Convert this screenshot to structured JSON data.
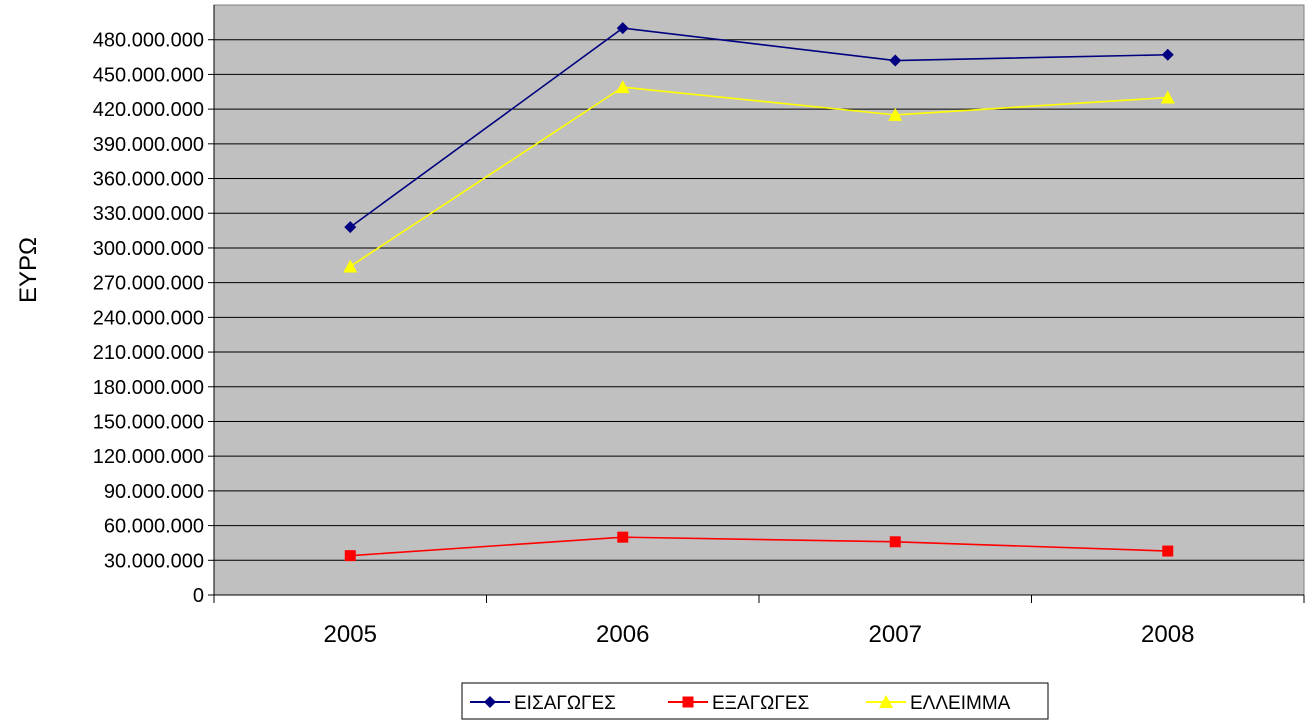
{
  "chart_data": {
    "type": "line",
    "ylabel": "ΕΥΡΩ",
    "categories": [
      "2005",
      "2006",
      "2007",
      "2008"
    ],
    "ylim": [
      0,
      510000000
    ],
    "ytick_step": 30000000,
    "ytick_labels": [
      "0",
      "30.000.000",
      "60.000.000",
      "90.000.000",
      "120.000.000",
      "150.000.000",
      "180.000.000",
      "210.000.000",
      "240.000.000",
      "270.000.000",
      "300.000.000",
      "330.000.000",
      "360.000.000",
      "390.000.000",
      "420.000.000",
      "450.000.000",
      "480.000.000"
    ],
    "grid": true,
    "legend_position": "bottom",
    "plot_background": "#c0c0c0",
    "series": [
      {
        "name": "ΕΙΣΑΓΩΓΕΣ",
        "color": "#000080",
        "marker": "diamond",
        "values": [
          318000000,
          490000000,
          462000000,
          467000000
        ]
      },
      {
        "name": "ΕΞΑΓΩΓΕΣ",
        "color": "#ff0000",
        "marker": "square",
        "values": [
          34000000,
          50000000,
          46000000,
          38000000
        ]
      },
      {
        "name": "ΕΛΛΕΙΜΜΑ",
        "color": "#ffff00",
        "marker": "triangle",
        "values": [
          284000000,
          439000000,
          415000000,
          430000000
        ]
      }
    ]
  }
}
